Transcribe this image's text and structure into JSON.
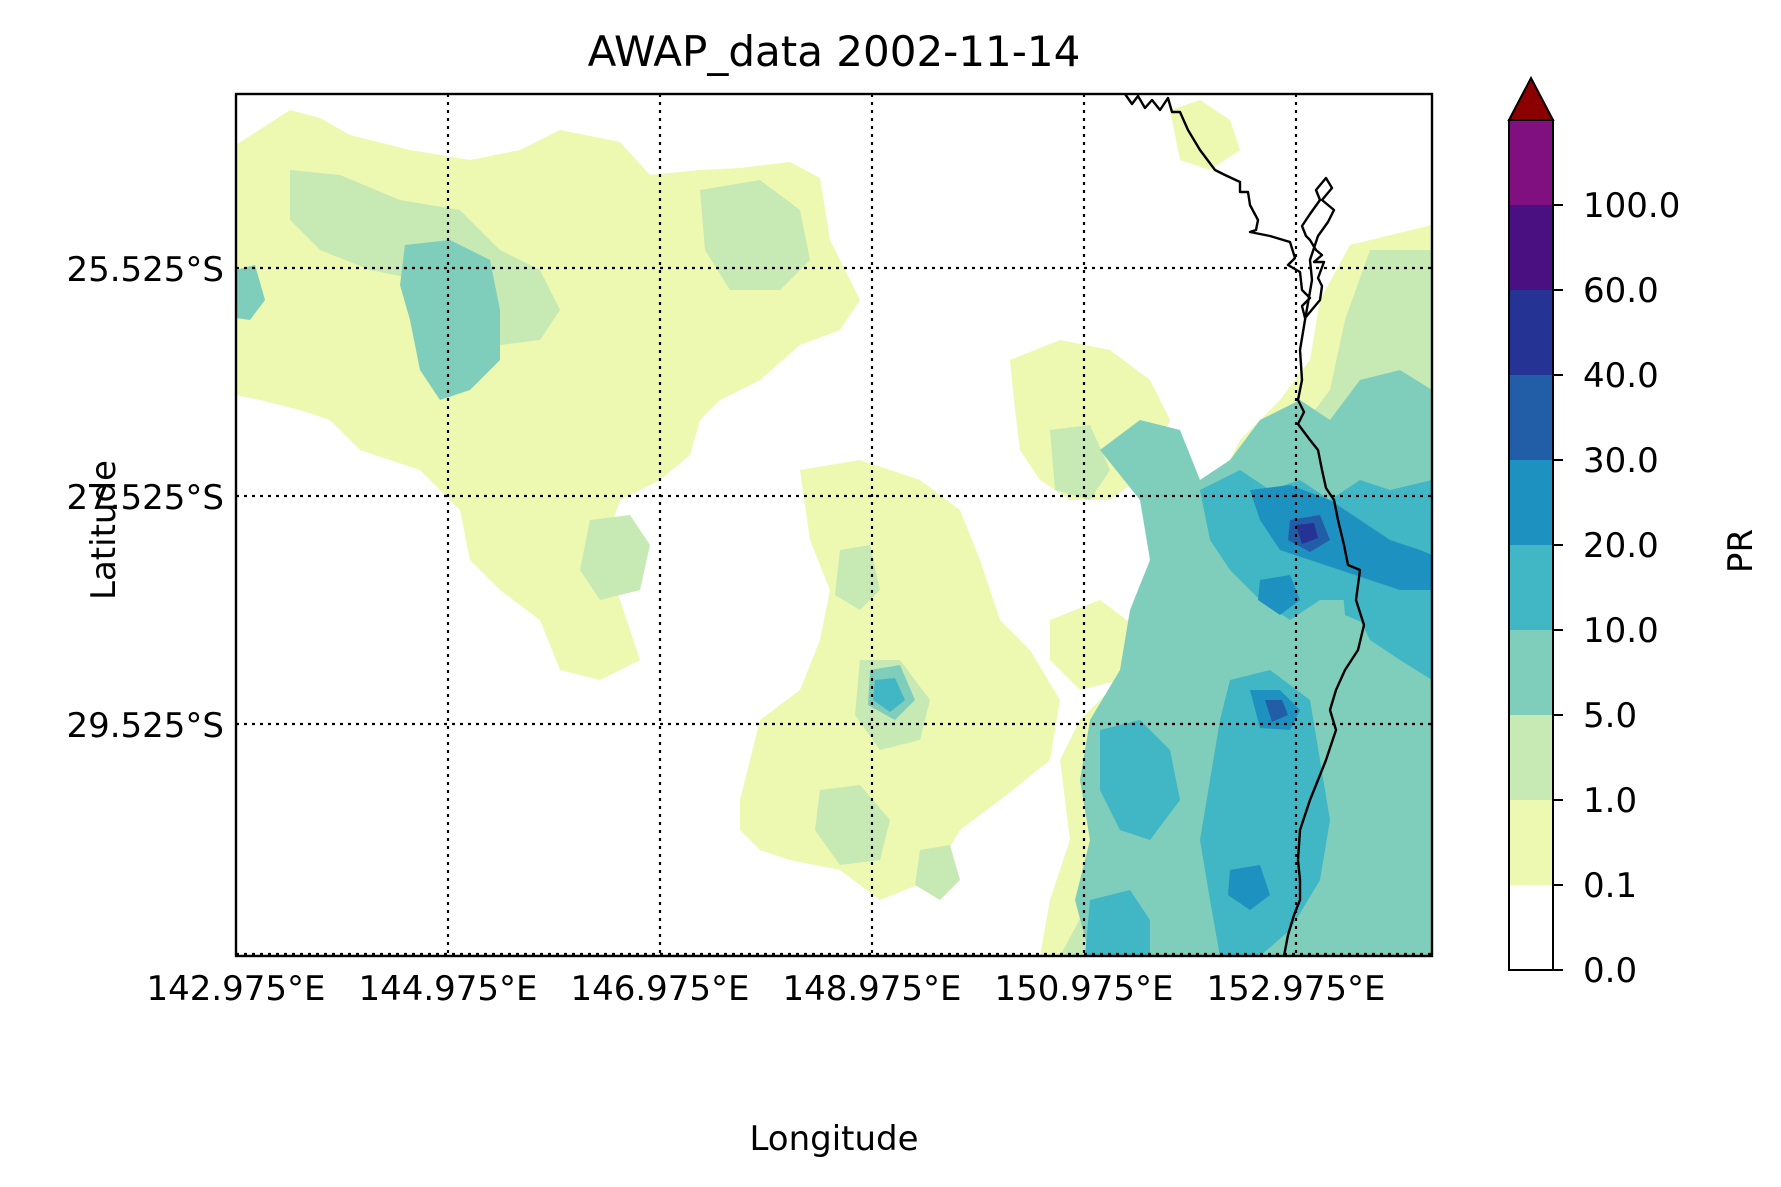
{
  "chart_data": {
    "type": "heatmap",
    "title": "AWAP_data 2002-11-14",
    "xlabel": "Longitude",
    "ylabel": "Latitude",
    "colorbar_label": "PR",
    "x_tick_labels": [
      "142.975°E",
      "144.975°E",
      "146.975°E",
      "148.975°E",
      "150.975°E",
      "152.975°E"
    ],
    "y_tick_labels": [
      "25.525°S",
      "27.525°S",
      "29.525°S"
    ],
    "x_ticks": [
      142.975,
      144.975,
      146.975,
      148.975,
      150.975,
      152.975
    ],
    "y_ticks": [
      -25.525,
      -27.525,
      -29.525
    ],
    "xlim": [
      142.975,
      154.25
    ],
    "ylim": [
      -31.575,
      -24.0
    ],
    "grid": true,
    "colorbar": {
      "levels": [
        0.0,
        0.1,
        1.0,
        5.0,
        10.0,
        20.0,
        30.0,
        40.0,
        60.0,
        100.0
      ],
      "level_labels": [
        "0.0",
        "0.1",
        "1.0",
        "5.0",
        "10.0",
        "20.0",
        "30.0",
        "40.0",
        "60.0",
        "100.0"
      ],
      "colors": [
        "#ffffff",
        "#edf8b1",
        "#c7e9b4",
        "#7fcdbb",
        "#41b6c4",
        "#1d91c0",
        "#225ea8",
        "#253494",
        "#4a0f80",
        "#800f80"
      ],
      "extend_max_color": "#8b0000"
    },
    "coastline_color": "#000000"
  }
}
